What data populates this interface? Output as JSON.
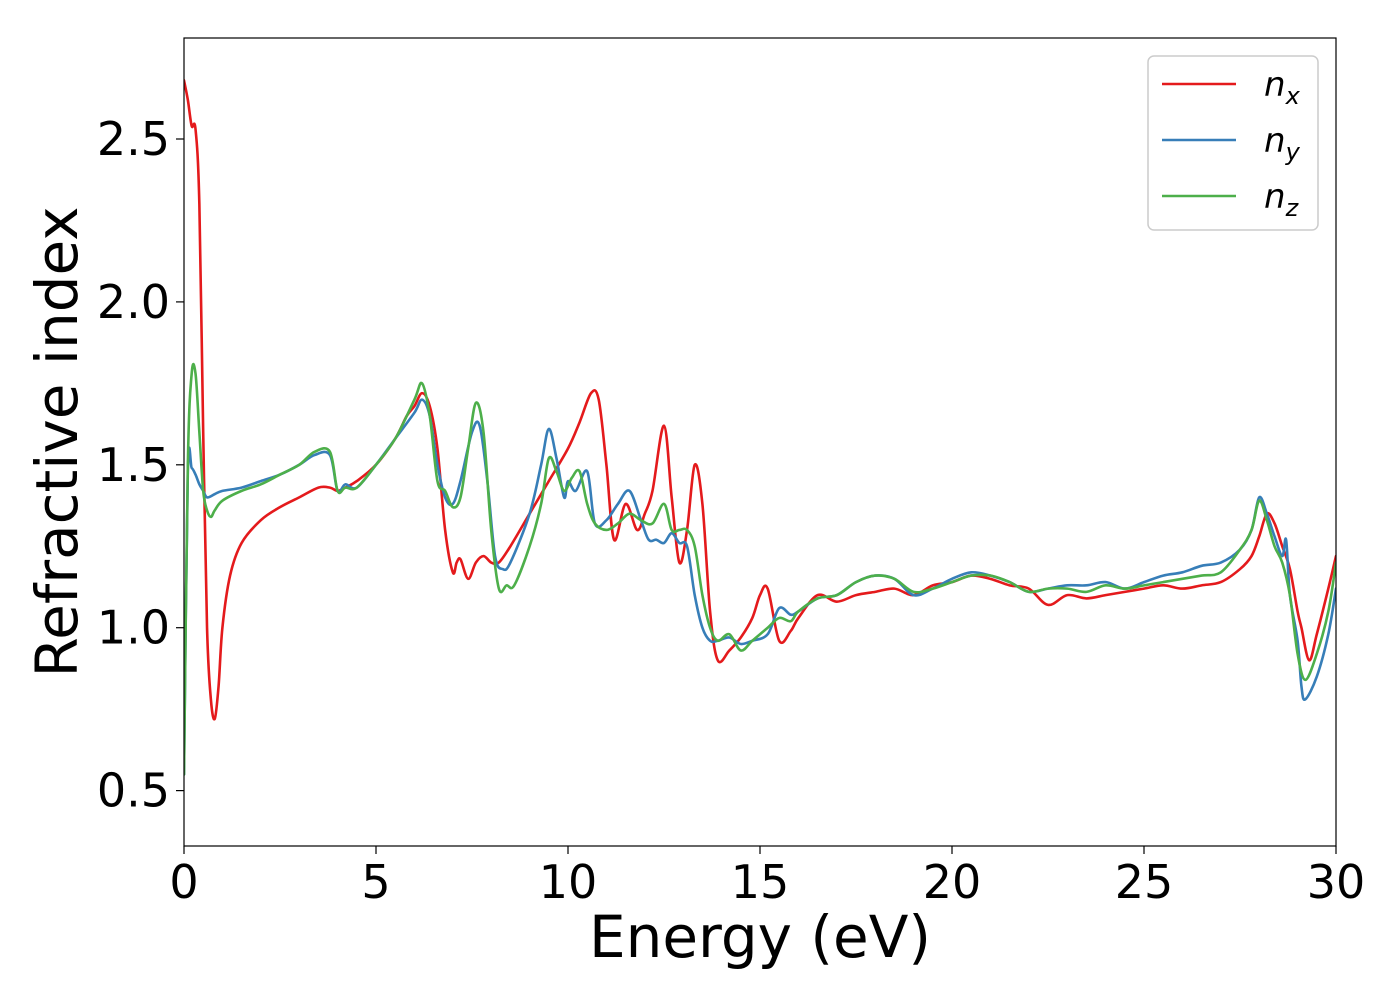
{
  "chart_data": {
    "type": "line",
    "title": "",
    "xlabel": "Energy (eV)",
    "ylabel": "Refractive index",
    "xlim": [
      0,
      30
    ],
    "ylim": [
      0.33,
      2.81
    ],
    "xticks": [
      0,
      5,
      10,
      15,
      20,
      25,
      30
    ],
    "xtick_labels": [
      "0",
      "5",
      "10",
      "15",
      "20",
      "25",
      "30"
    ],
    "yticks": [
      0.5,
      1.0,
      1.5,
      2.0,
      2.5
    ],
    "ytick_labels": [
      "0.5",
      "1.0",
      "1.5",
      "2.0",
      "2.5"
    ],
    "grid": false,
    "legend_position": "top-right",
    "series": [
      {
        "name": "n",
        "name_sub": "x",
        "color": "#e41a1c",
        "x": [
          0,
          0.1,
          0.2,
          0.3,
          0.4,
          0.5,
          0.6,
          0.7,
          0.8,
          0.9,
          1.0,
          1.2,
          1.5,
          2.0,
          2.5,
          3.0,
          3.5,
          3.8,
          4.0,
          4.2,
          4.5,
          5.0,
          5.5,
          5.8,
          6.0,
          6.2,
          6.4,
          6.6,
          6.8,
          7.0,
          7.1,
          7.2,
          7.4,
          7.6,
          7.8,
          8.0,
          8.2,
          8.5,
          9.0,
          9.5,
          10.0,
          10.3,
          10.6,
          10.8,
          11.0,
          11.2,
          11.5,
          11.8,
          12.0,
          12.2,
          12.5,
          12.7,
          12.9,
          13.1,
          13.3,
          13.5,
          13.7,
          13.9,
          14.2,
          14.5,
          14.8,
          15.0,
          15.2,
          15.5,
          15.8,
          16.0,
          16.5,
          17.0,
          17.5,
          18.0,
          18.5,
          19.0,
          19.5,
          20.0,
          20.5,
          21.0,
          21.5,
          22.0,
          22.5,
          23.0,
          23.5,
          24.0,
          24.5,
          25.0,
          25.5,
          26.0,
          26.5,
          27.0,
          27.5,
          27.8,
          28.0,
          28.2,
          28.4,
          28.6,
          28.8,
          29.0,
          29.1,
          29.3,
          29.5,
          29.8,
          30.0
        ],
        "y": [
          2.68,
          2.62,
          2.54,
          2.53,
          2.3,
          1.6,
          1.0,
          0.78,
          0.72,
          0.82,
          1.0,
          1.16,
          1.26,
          1.33,
          1.37,
          1.4,
          1.43,
          1.43,
          1.42,
          1.43,
          1.45,
          1.5,
          1.58,
          1.65,
          1.68,
          1.72,
          1.68,
          1.55,
          1.3,
          1.17,
          1.2,
          1.21,
          1.15,
          1.2,
          1.22,
          1.2,
          1.2,
          1.25,
          1.35,
          1.45,
          1.55,
          1.63,
          1.72,
          1.7,
          1.5,
          1.27,
          1.38,
          1.3,
          1.35,
          1.42,
          1.62,
          1.4,
          1.2,
          1.3,
          1.5,
          1.38,
          1.05,
          0.9,
          0.93,
          0.97,
          1.03,
          1.1,
          1.12,
          0.96,
          0.99,
          1.03,
          1.1,
          1.08,
          1.1,
          1.11,
          1.12,
          1.1,
          1.13,
          1.14,
          1.16,
          1.15,
          1.13,
          1.12,
          1.07,
          1.1,
          1.09,
          1.1,
          1.11,
          1.12,
          1.13,
          1.12,
          1.13,
          1.14,
          1.18,
          1.22,
          1.28,
          1.35,
          1.32,
          1.25,
          1.18,
          1.05,
          1.0,
          0.9,
          0.98,
          1.12,
          1.22
        ]
      },
      {
        "name": "n",
        "name_sub": "y",
        "color": "#377eb8",
        "x": [
          0,
          0.1,
          0.2,
          0.3,
          0.4,
          0.5,
          0.6,
          0.8,
          1.0,
          1.5,
          2.0,
          2.5,
          3.0,
          3.4,
          3.8,
          4.0,
          4.2,
          4.5,
          5.0,
          5.5,
          6.0,
          6.2,
          6.4,
          6.6,
          6.8,
          7.0,
          7.2,
          7.5,
          7.7,
          7.9,
          8.1,
          8.3,
          8.5,
          9.0,
          9.3,
          9.5,
          9.7,
          9.9,
          10.0,
          10.2,
          10.5,
          10.7,
          11.0,
          11.3,
          11.6,
          11.9,
          12.1,
          12.3,
          12.5,
          12.7,
          12.9,
          13.1,
          13.3,
          13.5,
          13.7,
          13.9,
          14.2,
          14.5,
          14.8,
          15.2,
          15.5,
          15.8,
          16.0,
          16.5,
          17.0,
          17.5,
          18.0,
          18.5,
          19.0,
          19.5,
          20.0,
          20.5,
          21.0,
          21.5,
          22.0,
          22.5,
          23.0,
          23.5,
          24.0,
          24.5,
          25.0,
          25.5,
          26.0,
          26.5,
          27.0,
          27.5,
          27.8,
          28.0,
          28.2,
          28.4,
          28.6,
          28.7,
          28.8,
          29.0,
          29.1,
          29.2,
          29.5,
          29.8,
          30.0
        ],
        "y": [
          0.55,
          1.48,
          1.49,
          1.47,
          1.44,
          1.42,
          1.4,
          1.41,
          1.42,
          1.43,
          1.45,
          1.47,
          1.5,
          1.53,
          1.53,
          1.42,
          1.44,
          1.43,
          1.5,
          1.58,
          1.66,
          1.7,
          1.65,
          1.5,
          1.4,
          1.38,
          1.45,
          1.6,
          1.62,
          1.45,
          1.22,
          1.18,
          1.2,
          1.35,
          1.5,
          1.61,
          1.52,
          1.4,
          1.45,
          1.42,
          1.48,
          1.32,
          1.33,
          1.38,
          1.42,
          1.33,
          1.27,
          1.27,
          1.26,
          1.29,
          1.26,
          1.25,
          1.1,
          1.0,
          0.96,
          0.96,
          0.97,
          0.95,
          0.96,
          0.98,
          1.06,
          1.04,
          1.05,
          1.09,
          1.1,
          1.14,
          1.16,
          1.15,
          1.1,
          1.12,
          1.15,
          1.17,
          1.16,
          1.14,
          1.11,
          1.12,
          1.13,
          1.13,
          1.14,
          1.12,
          1.14,
          1.16,
          1.17,
          1.19,
          1.2,
          1.24,
          1.3,
          1.4,
          1.35,
          1.28,
          1.22,
          1.27,
          1.1,
          0.96,
          0.82,
          0.78,
          0.85,
          0.98,
          1.12
        ]
      },
      {
        "name": "n",
        "name_sub": "z",
        "color": "#4daf4a",
        "x": [
          0,
          0.1,
          0.2,
          0.3,
          0.4,
          0.5,
          0.6,
          0.7,
          0.8,
          1.0,
          1.5,
          2.0,
          2.5,
          3.0,
          3.4,
          3.8,
          4.0,
          4.2,
          4.5,
          5.0,
          5.5,
          6.0,
          6.2,
          6.4,
          6.6,
          6.8,
          7.0,
          7.2,
          7.4,
          7.6,
          7.8,
          8.0,
          8.2,
          8.4,
          8.6,
          9.0,
          9.3,
          9.5,
          9.7,
          9.9,
          10.1,
          10.3,
          10.5,
          10.7,
          11.0,
          11.3,
          11.6,
          11.9,
          12.2,
          12.5,
          12.7,
          12.9,
          13.1,
          13.3,
          13.5,
          13.7,
          13.9,
          14.2,
          14.5,
          14.8,
          15.2,
          15.5,
          15.8,
          16.0,
          16.5,
          17.0,
          17.5,
          18.0,
          18.5,
          19.0,
          19.5,
          20.0,
          20.5,
          21.0,
          21.5,
          22.0,
          22.5,
          23.0,
          23.5,
          24.0,
          24.5,
          25.0,
          25.5,
          26.0,
          26.5,
          27.0,
          27.5,
          27.8,
          28.0,
          28.2,
          28.4,
          28.6,
          28.8,
          29.0,
          29.2,
          29.5,
          29.8,
          30.0
        ],
        "y": [
          0.55,
          1.5,
          1.78,
          1.78,
          1.6,
          1.42,
          1.36,
          1.34,
          1.36,
          1.39,
          1.42,
          1.44,
          1.47,
          1.5,
          1.54,
          1.54,
          1.42,
          1.43,
          1.43,
          1.5,
          1.58,
          1.7,
          1.75,
          1.65,
          1.45,
          1.42,
          1.37,
          1.4,
          1.55,
          1.69,
          1.6,
          1.3,
          1.12,
          1.13,
          1.13,
          1.25,
          1.38,
          1.52,
          1.48,
          1.42,
          1.46,
          1.48,
          1.38,
          1.32,
          1.3,
          1.32,
          1.35,
          1.33,
          1.32,
          1.38,
          1.3,
          1.3,
          1.3,
          1.25,
          1.1,
          1.0,
          0.96,
          0.98,
          0.93,
          0.96,
          1.0,
          1.03,
          1.02,
          1.05,
          1.09,
          1.1,
          1.14,
          1.16,
          1.15,
          1.11,
          1.12,
          1.14,
          1.16,
          1.16,
          1.14,
          1.11,
          1.12,
          1.12,
          1.11,
          1.13,
          1.12,
          1.13,
          1.14,
          1.15,
          1.16,
          1.17,
          1.24,
          1.3,
          1.39,
          1.33,
          1.25,
          1.2,
          1.1,
          0.92,
          0.84,
          0.92,
          1.05,
          1.2
        ]
      }
    ]
  }
}
